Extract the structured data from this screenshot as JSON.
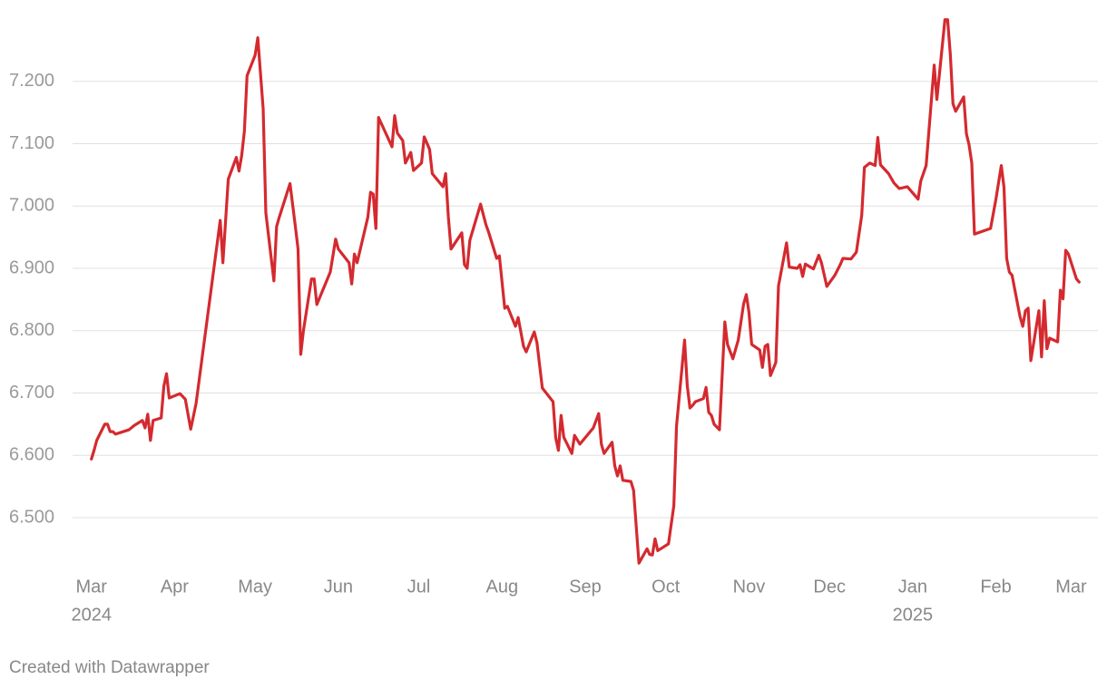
{
  "chart_data": {
    "type": "line",
    "color": "#d42a2f",
    "grid": true,
    "xlim": [
      -7,
      375
    ],
    "ylim": [
      6.42,
      7.3
    ],
    "xticks": [
      {
        "value": 0,
        "label": "Mar",
        "sublabel": "2024"
      },
      {
        "value": 31,
        "label": "Apr"
      },
      {
        "value": 61,
        "label": "May"
      },
      {
        "value": 92,
        "label": "Jun"
      },
      {
        "value": 122,
        "label": "Jul"
      },
      {
        "value": 153,
        "label": "Aug"
      },
      {
        "value": 184,
        "label": "Sep"
      },
      {
        "value": 214,
        "label": "Oct"
      },
      {
        "value": 245,
        "label": "Nov"
      },
      {
        "value": 275,
        "label": "Dec"
      },
      {
        "value": 306,
        "label": "Jan",
        "sublabel": "2025"
      },
      {
        "value": 337,
        "label": "Feb"
      },
      {
        "value": 365,
        "label": "Mar"
      }
    ],
    "yticks": [
      {
        "value": 6.5,
        "label": "6.500"
      },
      {
        "value": 6.6,
        "label": "6.600"
      },
      {
        "value": 6.7,
        "label": "6.700"
      },
      {
        "value": 6.8,
        "label": "6.800"
      },
      {
        "value": 6.9,
        "label": "6.900"
      },
      {
        "value": 7.0,
        "label": "7.000"
      },
      {
        "value": 7.1,
        "label": "7.100"
      },
      {
        "value": 7.2,
        "label": "7.200"
      }
    ],
    "x": [
      0,
      1,
      2,
      5,
      6,
      7,
      8,
      9,
      14,
      16,
      19,
      20,
      21,
      22,
      23,
      26,
      27,
      28,
      29,
      33,
      35,
      37,
      39,
      48,
      49,
      51,
      54,
      55,
      56,
      57,
      58,
      61,
      62,
      64,
      65,
      68,
      69,
      70,
      74,
      76,
      77,
      78,
      79,
      82,
      83,
      84,
      89,
      91,
      92,
      96,
      97,
      98,
      99,
      103,
      104,
      105,
      106,
      107,
      112,
      113,
      114,
      116,
      117,
      119,
      120,
      123,
      124,
      126,
      127,
      131,
      132,
      133,
      134,
      138,
      139,
      140,
      141,
      145,
      147,
      148,
      151,
      152,
      154,
      155,
      158,
      159,
      161,
      162,
      165,
      166,
      168,
      172,
      173,
      174,
      175,
      176,
      179,
      180,
      182,
      187,
      189,
      190,
      191,
      194,
      195,
      196,
      197,
      198,
      201,
      202,
      204,
      207,
      208,
      209,
      210,
      211,
      215,
      217,
      218,
      221,
      222,
      223,
      224,
      225,
      228,
      229,
      230,
      231,
      232,
      234,
      236,
      237,
      239,
      241,
      243,
      244,
      245,
      246,
      249,
      250,
      251,
      252,
      253,
      255,
      256,
      259,
      260,
      263,
      264,
      265,
      266,
      269,
      271,
      272,
      274,
      277,
      279,
      280,
      283,
      285,
      287,
      288,
      290,
      292,
      293,
      294,
      297,
      299,
      301,
      304,
      308,
      309,
      311,
      314,
      315,
      318,
      319,
      320,
      321,
      322,
      325,
      326,
      327,
      328,
      329,
      335,
      337,
      339,
      340,
      341,
      342,
      343,
      346,
      347,
      348,
      349,
      350,
      353,
      354,
      355,
      356,
      357,
      360,
      361,
      362,
      363,
      364,
      367,
      368
    ],
    "values": [
      6.594,
      6.608,
      6.624,
      6.65,
      6.65,
      6.638,
      6.638,
      6.634,
      6.641,
      6.648,
      6.656,
      6.644,
      6.666,
      6.624,
      6.656,
      6.66,
      6.711,
      6.731,
      6.692,
      6.699,
      6.69,
      6.642,
      6.683,
      6.977,
      6.909,
      7.043,
      7.078,
      7.056,
      7.081,
      7.12,
      7.209,
      7.242,
      7.27,
      7.156,
      6.989,
      6.88,
      6.967,
      6.982,
      7.036,
      6.967,
      6.931,
      6.762,
      6.8,
      6.883,
      6.883,
      6.842,
      6.894,
      6.947,
      6.931,
      6.909,
      6.875,
      6.923,
      6.909,
      6.982,
      7.022,
      7.019,
      6.964,
      7.142,
      7.095,
      7.145,
      7.117,
      7.105,
      7.069,
      7.086,
      7.057,
      7.069,
      7.111,
      7.091,
      7.052,
      7.031,
      7.052,
      6.982,
      6.931,
      6.957,
      6.906,
      6.9,
      6.945,
      7.003,
      6.97,
      6.958,
      6.916,
      6.92,
      6.836,
      6.839,
      6.807,
      6.821,
      6.775,
      6.766,
      6.798,
      6.781,
      6.708,
      6.686,
      6.628,
      6.608,
      6.664,
      6.629,
      6.603,
      6.632,
      6.618,
      6.644,
      6.667,
      6.618,
      6.603,
      6.621,
      6.583,
      6.567,
      6.583,
      6.56,
      6.558,
      6.544,
      6.427,
      6.45,
      6.441,
      6.44,
      6.466,
      6.447,
      6.458,
      6.519,
      6.647,
      6.785,
      6.712,
      6.676,
      6.68,
      6.686,
      6.691,
      6.709,
      6.669,
      6.664,
      6.65,
      6.641,
      6.814,
      6.778,
      6.755,
      6.785,
      6.843,
      6.858,
      6.829,
      6.778,
      6.769,
      6.741,
      6.775,
      6.778,
      6.728,
      6.749,
      6.872,
      6.941,
      6.902,
      6.9,
      6.906,
      6.887,
      6.907,
      6.899,
      6.921,
      6.909,
      6.871,
      6.889,
      6.906,
      6.916,
      6.915,
      6.926,
      6.985,
      7.062,
      7.069,
      7.065,
      7.11,
      7.066,
      7.052,
      7.037,
      7.028,
      7.031,
      7.011,
      7.04,
      7.065,
      7.226,
      7.171,
      7.299,
      7.299,
      7.244,
      7.164,
      7.152,
      7.175,
      7.116,
      7.098,
      7.069,
      6.955,
      6.964,
      7.011,
      7.065,
      7.03,
      6.916,
      6.894,
      6.889,
      6.822,
      6.807,
      6.832,
      6.836,
      6.752,
      6.832,
      6.758,
      6.848,
      6.771,
      6.788,
      6.782,
      6.865,
      6.851,
      6.929,
      6.923,
      6.883,
      6.878
    ],
    "credit": "Created with Datawrapper"
  }
}
